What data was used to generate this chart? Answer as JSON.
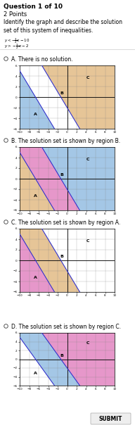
{
  "title": "Question 1 of 10",
  "subtitle": "2 Points",
  "question": "Identify the graph and describe the solution\nset of this system of inequalities.",
  "ineq1": "y < -3/2 x - 10",
  "ineq2": "y > -3/2 x - 2",
  "options": [
    "A. There is no solution.",
    "B. The solution set is shown by region B.",
    "C. The solution set is shown by region A.",
    "D. The solution set is shown by region C."
  ],
  "submit_label": "SUBMIT",
  "color_blue": [
    0.647,
    0.784,
    0.902
  ],
  "color_orange": [
    0.902,
    0.773,
    0.596
  ],
  "color_pink": [
    0.902,
    0.596,
    0.796
  ],
  "color_white": [
    1.0,
    1.0,
    1.0
  ],
  "graphs": [
    {
      "A": "blue",
      "B": "white",
      "C": "orange"
    },
    {
      "A": "orange",
      "B": "pink",
      "C": "blue"
    },
    {
      "A": "pink",
      "B": "orange",
      "C": "white"
    },
    {
      "A": "white",
      "B": "blue",
      "C": "pink"
    }
  ],
  "label_positions": {
    "A": [
      -7,
      -3.5
    ],
    "B": [
      -1.5,
      0.5
    ],
    "C": [
      4,
      3.5
    ]
  }
}
